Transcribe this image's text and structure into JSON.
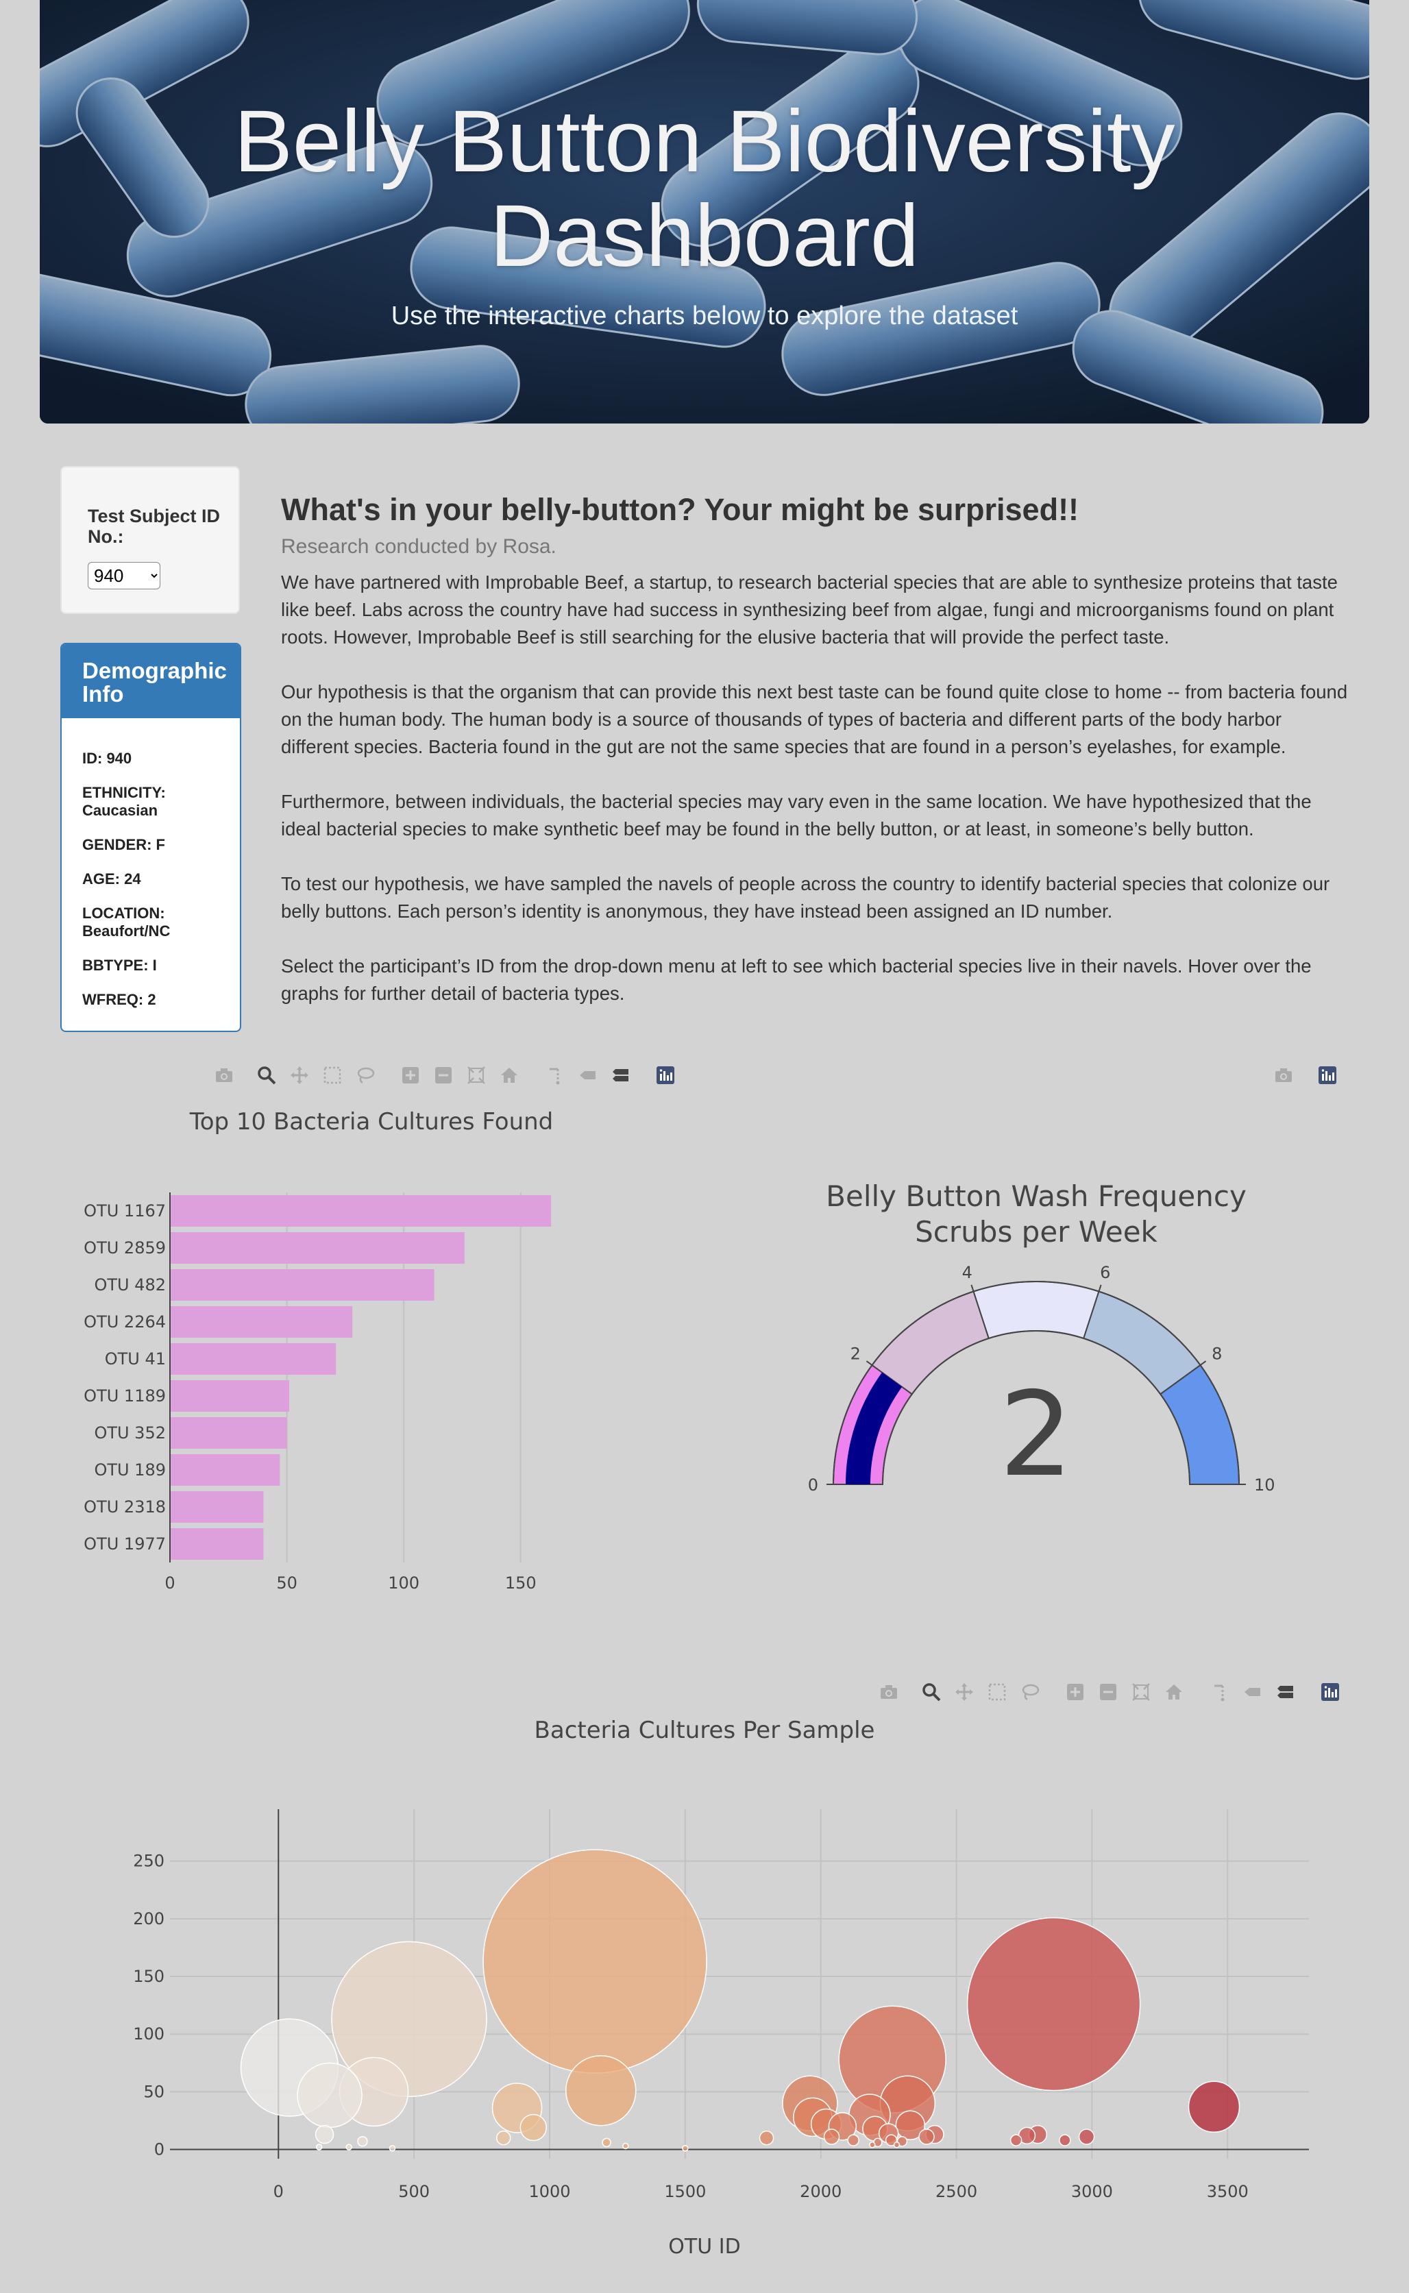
{
  "jumbotron": {
    "title_line1": "Belly Button Biodiversity",
    "title_line2": "Dashboard",
    "subtitle": "Use the interactive charts below to explore the dataset"
  },
  "selector": {
    "label": "Test Subject ID No.:",
    "selected": "940"
  },
  "demographics": {
    "title": "Demographic Info",
    "rows": [
      "ID: 940",
      "ETHNICITY: Caucasian",
      "GENDER: F",
      "AGE: 24",
      "LOCATION: Beaufort/NC",
      "BBTYPE: I",
      "WFREQ: 2"
    ]
  },
  "article": {
    "heading": "What's in your belly-button? Your might be surprised!!",
    "byline": "Research conducted by Rosa.",
    "paragraphs": [
      "We have partnered with Improbable Beef, a startup, to research bacterial species that are able to synthesize proteins that taste like beef. Labs across the country have had success in synthesizing beef from algae, fungi and microorganisms found on plant roots. However, Improbable Beef is still searching for the elusive bacteria that will provide the perfect taste.",
      "Our hypothesis is that the organism that can provide this next best taste can be found quite close to home -- from bacteria found on the human body. The human body is a source of thousands of types of bacteria and different parts of the body harbor different species. Bacteria found in the gut are not the same species that are found in a person’s eyelashes, for example.",
      "Furthermore, between individuals, the bacterial species may vary even in the same location. We have hypothesized that the ideal bacterial species to make synthetic beef may be found in the belly button, or at least, in someone’s belly button.",
      "To test our hypothesis, we have sampled the navels of people across the country to identify bacterial species that colonize our belly buttons. Each person’s identity is anonymous, they have instead been assigned an ID number.",
      "Select the participant’s ID from the drop-down menu at left to see which bacterial species live in their navels. Hover over the graphs for further detail of bacteria types."
    ]
  },
  "modebar_icons": [
    "camera-icon",
    "zoom-icon",
    "pan-icon",
    "box-select-icon",
    "lasso-icon",
    "zoom-in-icon",
    "zoom-out-icon",
    "autoscale-icon",
    "reset-axes-icon",
    "spike-lines-icon",
    "hover-closest-icon",
    "hover-compare-icon",
    "plotly-logo-icon"
  ],
  "chart_data": [
    {
      "type": "bar",
      "orientation": "horizontal",
      "title": "Top 10 Bacteria Cultures Found",
      "categories": [
        "OTU 1167",
        "OTU 2859",
        "OTU 482",
        "OTU 2264",
        "OTU 41",
        "OTU 1189",
        "OTU 352",
        "OTU 189",
        "OTU 2318",
        "OTU 1977"
      ],
      "values": [
        163,
        126,
        113,
        78,
        71,
        51,
        50,
        47,
        40,
        40
      ],
      "xlim": [
        0,
        170
      ],
      "xticks": [
        0,
        50,
        100,
        150
      ],
      "color": "#dda0dd",
      "grid": true
    },
    {
      "type": "gauge",
      "title_line1": "Belly Button Wash Frequency",
      "title_line2": "Scrubs per Week",
      "value": 2,
      "range": [
        0,
        10
      ],
      "ticks": [
        0,
        2,
        4,
        6,
        8,
        10
      ],
      "bar_color": "#00008b",
      "steps": [
        {
          "range": [
            0,
            2
          ],
          "color": "#ee82ee"
        },
        {
          "range": [
            2,
            4
          ],
          "color": "#d8bfd8"
        },
        {
          "range": [
            4,
            6
          ],
          "color": "#e6e6fa"
        },
        {
          "range": [
            6,
            8
          ],
          "color": "#b0c4de"
        },
        {
          "range": [
            8,
            10
          ],
          "color": "#6495ed"
        }
      ]
    },
    {
      "type": "scatter",
      "title": "Bacteria Cultures Per Sample",
      "xlabel": "OTU ID",
      "ylabel": "",
      "xlim": [
        -400,
        3800
      ],
      "ylim": [
        -8,
        295
      ],
      "xticks": [
        0,
        500,
        1000,
        1500,
        2000,
        2500,
        3000,
        3500
      ],
      "yticks": [
        0,
        50,
        100,
        150,
        200,
        250
      ],
      "colorscale": "Earth",
      "grid": true,
      "points": [
        {
          "x": 41,
          "y": 71
        },
        {
          "x": 189,
          "y": 47
        },
        {
          "x": 352,
          "y": 50
        },
        {
          "x": 482,
          "y": 113
        },
        {
          "x": 1167,
          "y": 163
        },
        {
          "x": 1189,
          "y": 51
        },
        {
          "x": 2859,
          "y": 126
        },
        {
          "x": 2264,
          "y": 78
        },
        {
          "x": 3450,
          "y": 37
        },
        {
          "x": 880,
          "y": 36
        },
        {
          "x": 940,
          "y": 19
        },
        {
          "x": 1960,
          "y": 40
        },
        {
          "x": 1970,
          "y": 28
        },
        {
          "x": 2020,
          "y": 22
        },
        {
          "x": 2080,
          "y": 20
        },
        {
          "x": 2180,
          "y": 30
        },
        {
          "x": 2200,
          "y": 18
        },
        {
          "x": 2320,
          "y": 40
        },
        {
          "x": 2330,
          "y": 21
        },
        {
          "x": 2250,
          "y": 14
        },
        {
          "x": 2040,
          "y": 11
        },
        {
          "x": 2120,
          "y": 8
        },
        {
          "x": 2260,
          "y": 8
        },
        {
          "x": 2300,
          "y": 7
        },
        {
          "x": 2390,
          "y": 11
        },
        {
          "x": 2420,
          "y": 13
        },
        {
          "x": 2760,
          "y": 12
        },
        {
          "x": 2800,
          "y": 13
        },
        {
          "x": 2980,
          "y": 11
        },
        {
          "x": 2720,
          "y": 8
        },
        {
          "x": 2900,
          "y": 8
        },
        {
          "x": 1800,
          "y": 10
        },
        {
          "x": 830,
          "y": 10
        },
        {
          "x": 170,
          "y": 13
        },
        {
          "x": 310,
          "y": 7
        },
        {
          "x": 1210,
          "y": 6
        },
        {
          "x": 2190,
          "y": 4
        },
        {
          "x": 2280,
          "y": 4
        },
        {
          "x": 2210,
          "y": 6
        },
        {
          "x": 1280,
          "y": 3
        },
        {
          "x": 150,
          "y": 2
        },
        {
          "x": 260,
          "y": 2
        },
        {
          "x": 420,
          "y": 1
        },
        {
          "x": 1500,
          "y": 1
        }
      ]
    }
  ]
}
